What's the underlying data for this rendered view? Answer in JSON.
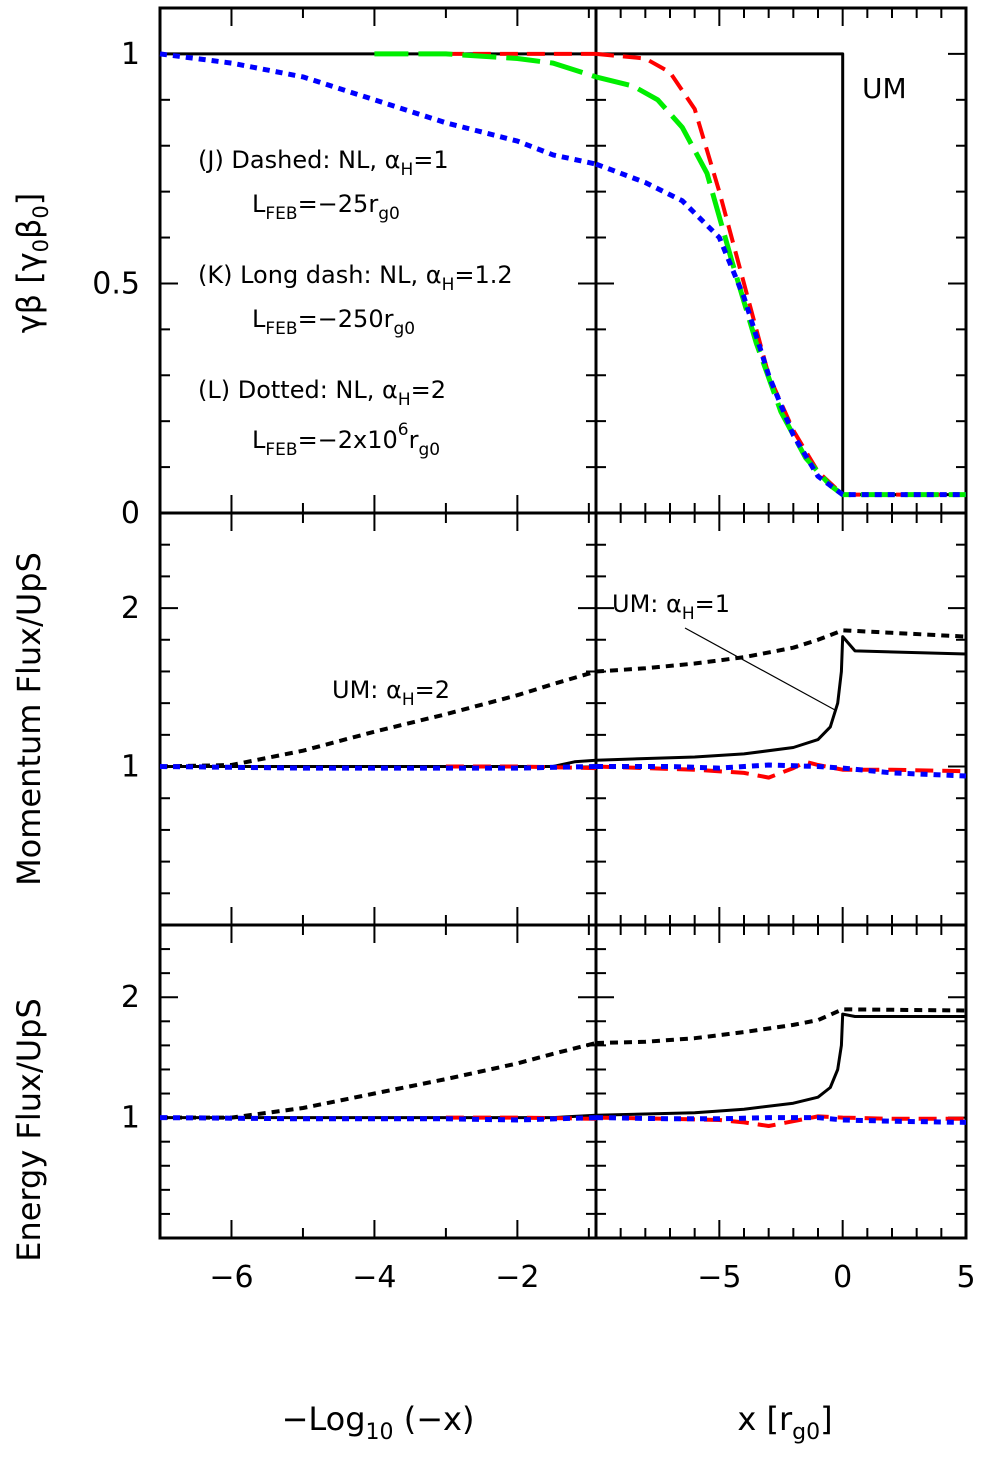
{
  "figure": {
    "ylabels": {
      "top": "γβ [γ₀β₀]",
      "top_main": "γβ [γ",
      "top_sub0a": "0",
      "top_mid": "β",
      "top_sub0b": "0",
      "top_end": "]",
      "middle": "Momentum Flux/UpS",
      "bottom": "Energy Flux/UpS"
    },
    "xlabels": {
      "left_main": "−Log",
      "left_sub": "10",
      "left_end": " (−x)",
      "right_main": "x [r",
      "right_sub": "g0",
      "right_end": "]"
    },
    "legend": {
      "j_line1_a": "(J) Dashed: NL, α",
      "j_line1_sub": "H",
      "j_line1_b": "=1",
      "j_line2_a": "L",
      "j_line2_sub": "FEB",
      "j_line2_b": "=−25r",
      "j_line2_sub2": "g0",
      "k_line1_a": "(K) Long dash: NL, α",
      "k_line1_sub": "H",
      "k_line1_b": "=1.2",
      "k_line2_a": "L",
      "k_line2_sub": "FEB",
      "k_line2_b": "=−250r",
      "k_line2_sub2": "g0",
      "l_line1_a": "(L) Dotted: NL, α",
      "l_line1_sub": "H",
      "l_line1_b": "=2",
      "l_line2_a": "L",
      "l_line2_sub": "FEB",
      "l_line2_b": "=−2x10",
      "l_line2_sup": "6",
      "l_line2_c": "r",
      "l_line2_sub2": "g0"
    },
    "annotations": {
      "um": "UM",
      "um_a1_a": "UM: α",
      "um_a1_sub": "H",
      "um_a1_b": "=1",
      "um_a2_a": "UM: α",
      "um_a2_sub": "H",
      "um_a2_b": "=2"
    }
  },
  "chart_data": {
    "type": "line",
    "colors": {
      "J": "#ff0000",
      "K": "#00ee00",
      "L": "#0000ff",
      "UM": "#000000"
    },
    "x_left": {
      "label": "−Log10 (−x)",
      "range": [
        -7,
        -0.9
      ],
      "ticks": [
        -6,
        -4,
        -2
      ]
    },
    "x_right": {
      "label": "x [rg0]",
      "range": [
        -10,
        5
      ],
      "ticks": [
        -5,
        0,
        5
      ]
    },
    "panels": [
      {
        "ylabel": "γβ [γ0β0]",
        "ylim": [
          0,
          1.1
        ],
        "yticks": [
          0,
          0.5,
          1
        ],
        "ytick_labels": [
          "0",
          "0.5",
          "1"
        ],
        "series": [
          {
            "id": "UM",
            "style": "solid",
            "left": [
              [
                -7,
                1
              ],
              [
                -0.9,
                1
              ]
            ],
            "right": [
              [
                -10,
                1
              ],
              [
                0,
                1
              ],
              [
                0,
                0.04
              ],
              [
                5,
                0.04
              ]
            ]
          },
          {
            "id": "J",
            "style": "dashed",
            "left": [
              [
                -3,
                1
              ],
              [
                -0.9,
                1
              ]
            ],
            "right": [
              [
                -10,
                1
              ],
              [
                -8,
                0.99
              ],
              [
                -7,
                0.96
              ],
              [
                -6,
                0.88
              ],
              [
                -5,
                0.7
              ],
              [
                -4,
                0.5
              ],
              [
                -3,
                0.3
              ],
              [
                -2,
                0.18
              ],
              [
                -1,
                0.09
              ],
              [
                0,
                0.04
              ],
              [
                5,
                0.04
              ]
            ]
          },
          {
            "id": "K",
            "style": "longdash",
            "left": [
              [
                -4,
                1
              ],
              [
                -3,
                1
              ],
              [
                -2,
                0.99
              ],
              [
                -1.5,
                0.98
              ],
              [
                -0.9,
                0.95
              ]
            ],
            "right": [
              [
                -10,
                0.95
              ],
              [
                -8.5,
                0.93
              ],
              [
                -7.5,
                0.9
              ],
              [
                -6.5,
                0.84
              ],
              [
                -5.5,
                0.74
              ],
              [
                -4.5,
                0.55
              ],
              [
                -3.5,
                0.37
              ],
              [
                -2.5,
                0.22
              ],
              [
                -1.5,
                0.12
              ],
              [
                -0.5,
                0.06
              ],
              [
                0,
                0.04
              ],
              [
                5,
                0.04
              ]
            ]
          },
          {
            "id": "L",
            "style": "dotted",
            "left": [
              [
                -7,
                1
              ],
              [
                -6,
                0.98
              ],
              [
                -5,
                0.95
              ],
              [
                -4,
                0.9
              ],
              [
                -3,
                0.85
              ],
              [
                -2,
                0.81
              ],
              [
                -1.5,
                0.78
              ],
              [
                -0.9,
                0.76
              ]
            ],
            "right": [
              [
                -10,
                0.76
              ],
              [
                -9,
                0.74
              ],
              [
                -8,
                0.72
              ],
              [
                -6.5,
                0.68
              ],
              [
                -5,
                0.6
              ],
              [
                -4,
                0.47
              ],
              [
                -3,
                0.3
              ],
              [
                -2,
                0.17
              ],
              [
                -1,
                0.08
              ],
              [
                0,
                0.04
              ],
              [
                5,
                0.04
              ]
            ]
          }
        ]
      },
      {
        "ylabel": "Momentum Flux/UpS",
        "ylim": [
          0,
          2.6
        ],
        "yticks": [
          1,
          2
        ],
        "ytick_labels": [
          "1",
          "2"
        ],
        "series": [
          {
            "id": "UM_aH2",
            "style": "dotted_black",
            "left": [
              [
                -7,
                1
              ],
              [
                -6,
                1.01
              ],
              [
                -5,
                1.1
              ],
              [
                -4,
                1.22
              ],
              [
                -3,
                1.33
              ],
              [
                -2,
                1.45
              ],
              [
                -1.5,
                1.52
              ],
              [
                -0.9,
                1.6
              ]
            ],
            "right": [
              [
                -10,
                1.6
              ],
              [
                -8,
                1.62
              ],
              [
                -6,
                1.65
              ],
              [
                -4,
                1.69
              ],
              [
                -2,
                1.75
              ],
              [
                -1,
                1.8
              ],
              [
                0,
                1.86
              ],
              [
                5,
                1.82
              ]
            ]
          },
          {
            "id": "UM_aH1",
            "style": "solid",
            "left": [
              [
                -7,
                1
              ],
              [
                -1.5,
                1
              ],
              [
                -1.2,
                1.03
              ],
              [
                -0.9,
                1.04
              ]
            ],
            "right": [
              [
                -10,
                1.04
              ],
              [
                -6,
                1.06
              ],
              [
                -4,
                1.08
              ],
              [
                -2,
                1.12
              ],
              [
                -1,
                1.17
              ],
              [
                -0.5,
                1.25
              ],
              [
                -0.2,
                1.4
              ],
              [
                -0.05,
                1.6
              ],
              [
                0,
                1.82
              ],
              [
                0.5,
                1.73
              ],
              [
                5,
                1.71
              ]
            ]
          },
          {
            "id": "J",
            "style": "dashed",
            "left": [
              [
                -3,
                1
              ],
              [
                -2,
                1
              ],
              [
                -0.9,
                0.99
              ]
            ],
            "right": [
              [
                -10,
                1
              ],
              [
                -8,
                0.99
              ],
              [
                -6,
                0.98
              ],
              [
                -4,
                0.96
              ],
              [
                -3,
                0.93
              ],
              [
                -2,
                0.99
              ],
              [
                -1.5,
                1.03
              ],
              [
                -1,
                1.01
              ],
              [
                0,
                0.98
              ],
              [
                2,
                0.98
              ],
              [
                5,
                0.97
              ]
            ]
          },
          {
            "id": "L",
            "style": "dotted",
            "left": [
              [
                -7,
                1
              ],
              [
                -5,
                0.99
              ],
              [
                -3,
                0.99
              ],
              [
                -2,
                0.99
              ],
              [
                -0.9,
                1
              ]
            ],
            "right": [
              [
                -10,
                1
              ],
              [
                -7,
                1
              ],
              [
                -5,
                0.99
              ],
              [
                -3,
                1.01
              ],
              [
                -1,
                1.0
              ],
              [
                0,
                0.99
              ],
              [
                2,
                0.96
              ],
              [
                5,
                0.94
              ]
            ]
          }
        ]
      },
      {
        "ylabel": "Energy Flux/UpS",
        "ylim": [
          0,
          2.6
        ],
        "yticks": [
          1,
          2
        ],
        "ytick_labels": [
          "1",
          "2"
        ],
        "series": [
          {
            "id": "UM_aH2",
            "style": "dotted_black",
            "left": [
              [
                -7,
                1
              ],
              [
                -6,
                1.0
              ],
              [
                -5,
                1.08
              ],
              [
                -4,
                1.2
              ],
              [
                -3,
                1.32
              ],
              [
                -2,
                1.45
              ],
              [
                -1.5,
                1.53
              ],
              [
                -0.9,
                1.62
              ]
            ],
            "right": [
              [
                -10,
                1.62
              ],
              [
                -8,
                1.63
              ],
              [
                -6,
                1.66
              ],
              [
                -4,
                1.71
              ],
              [
                -2,
                1.77
              ],
              [
                -1,
                1.81
              ],
              [
                0,
                1.9
              ],
              [
                5,
                1.89
              ]
            ]
          },
          {
            "id": "UM_aH1",
            "style": "solid",
            "left": [
              [
                -7,
                1
              ],
              [
                -1.5,
                1
              ],
              [
                -1.2,
                1.01
              ],
              [
                -0.9,
                1.02
              ]
            ],
            "right": [
              [
                -10,
                1.02
              ],
              [
                -6,
                1.04
              ],
              [
                -4,
                1.07
              ],
              [
                -2,
                1.12
              ],
              [
                -1,
                1.17
              ],
              [
                -0.5,
                1.25
              ],
              [
                -0.2,
                1.4
              ],
              [
                -0.05,
                1.6
              ],
              [
                0,
                1.86
              ],
              [
                0.5,
                1.84
              ],
              [
                5,
                1.84
              ]
            ]
          },
          {
            "id": "J",
            "style": "dashed",
            "left": [
              [
                -3,
                1
              ],
              [
                -2,
                1
              ],
              [
                -0.9,
                0.99
              ]
            ],
            "right": [
              [
                -10,
                1
              ],
              [
                -7,
                0.99
              ],
              [
                -5,
                0.98
              ],
              [
                -4,
                0.96
              ],
              [
                -3,
                0.93
              ],
              [
                -2,
                0.97
              ],
              [
                -1,
                1.01
              ],
              [
                0,
                1.0
              ],
              [
                2,
                0.99
              ],
              [
                5,
                0.99
              ]
            ]
          },
          {
            "id": "L",
            "style": "dotted",
            "left": [
              [
                -7,
                1
              ],
              [
                -5,
                0.99
              ],
              [
                -3,
                0.99
              ],
              [
                -2,
                0.98
              ],
              [
                -0.9,
                1
              ]
            ],
            "right": [
              [
                -10,
                1
              ],
              [
                -7,
                0.99
              ],
              [
                -5,
                0.99
              ],
              [
                -3,
                1.0
              ],
              [
                -1,
                1.0
              ],
              [
                0,
                0.98
              ],
              [
                2,
                0.97
              ],
              [
                5,
                0.96
              ]
            ]
          }
        ]
      }
    ]
  }
}
